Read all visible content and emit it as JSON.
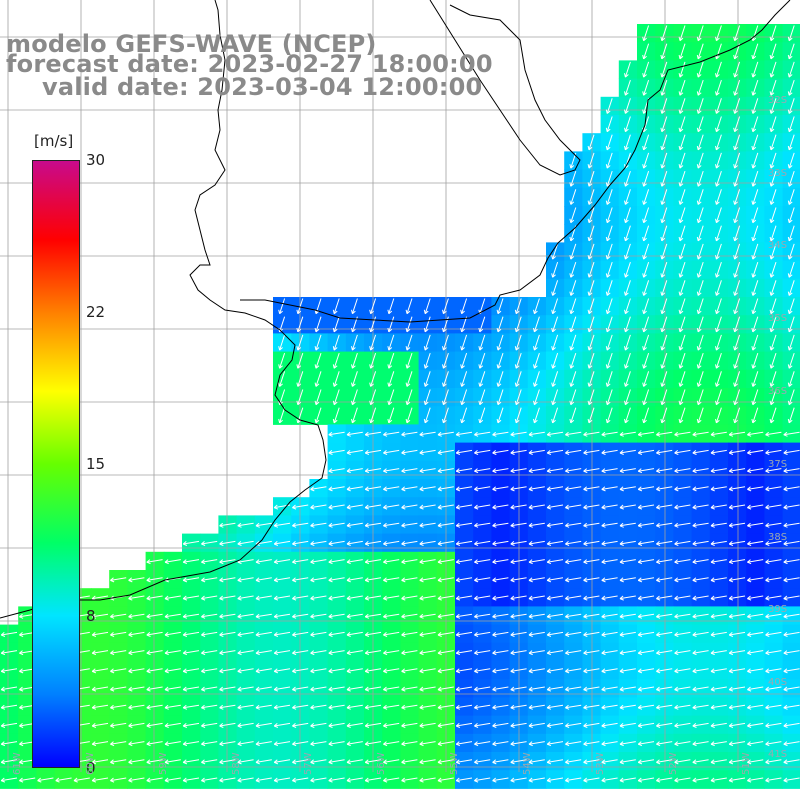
{
  "title": {
    "line1": "modelo GEFS-WAVE (NCEP)",
    "line2": "forecast date: 2023-02-27 18:00:00",
    "line3": "valid date: 2023-03-04 12:00:00"
  },
  "colorbar": {
    "units": "[m/s]",
    "ticks": [
      "30",
      "22",
      "15",
      "8",
      "0"
    ],
    "tick_values": [
      30,
      22,
      15,
      8,
      0
    ],
    "colors": [
      "#0000ff",
      "#0080ff",
      "#00e5ff",
      "#00ff66",
      "#66ff00",
      "#ffff00",
      "#ff8000",
      "#ff0000",
      "#c80a8c"
    ]
  },
  "lat_labels": [
    "32S",
    "33S",
    "34S",
    "35S",
    "36S",
    "37S",
    "38S",
    "39S",
    "40S",
    "41S"
  ],
  "lon_labels": [
    "61W",
    "60W",
    "59W",
    "58W",
    "57W",
    "56W",
    "55W",
    "54W",
    "53W",
    "52W",
    "51W"
  ],
  "map": {
    "land_color": "#ffffff",
    "grid_color": "#a0a0a0",
    "coast_color": "#000000",
    "arrow_color": "#ffffff"
  }
}
